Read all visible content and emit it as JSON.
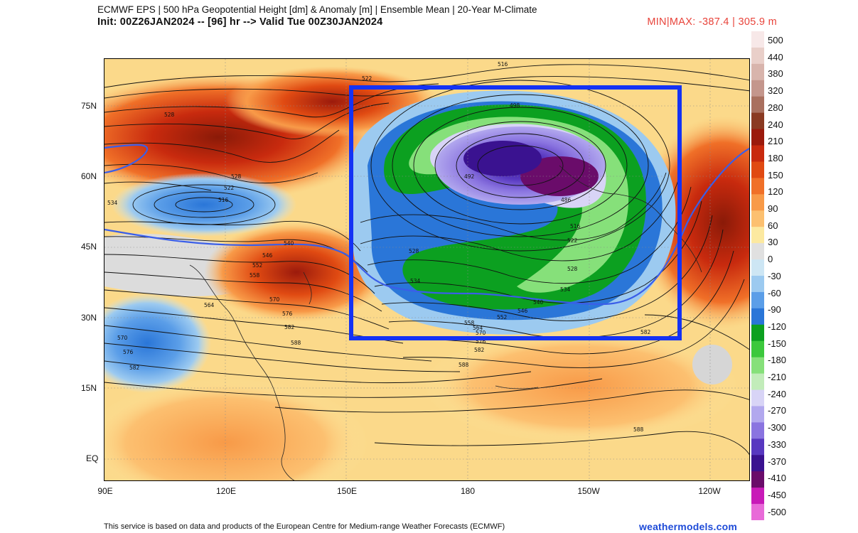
{
  "header": {
    "title_line1": "ECMWF EPS | 500 hPa Geopotential Height [dm] & Anomaly [m] | Ensemble Mean | 20-Year M-Climate",
    "title_line2": "Init: 00Z26JAN2024 -- [96] hr --> Valid Tue 00Z30JAN2024",
    "minmax": "MIN|MAX: -387.4 | 305.9 m"
  },
  "map": {
    "lat_labels": [
      "75N",
      "60N",
      "45N",
      "30N",
      "15N",
      "EQ"
    ],
    "lon_labels": [
      "90E",
      "120E",
      "150E",
      "180",
      "150W",
      "120W"
    ],
    "contour_labels": [
      "516",
      "522",
      "528",
      "492",
      "498",
      "486",
      "516",
      "522",
      "528",
      "534",
      "540",
      "546",
      "552",
      "558",
      "564",
      "570",
      "576",
      "582",
      "588",
      "588",
      "534",
      "528",
      "522",
      "516",
      "528",
      "534",
      "540",
      "546",
      "552",
      "558",
      "564",
      "570",
      "576",
      "582",
      "588",
      "570",
      "576",
      "582",
      "582"
    ],
    "highlight_box_color": "#1432f5"
  },
  "colorbar": {
    "labels": [
      "500",
      "440",
      "380",
      "320",
      "280",
      "240",
      "210",
      "180",
      "150",
      "120",
      "90",
      "60",
      "30",
      "0",
      "-30",
      "-60",
      "-90",
      "-120",
      "-150",
      "-180",
      "-210",
      "-240",
      "-270",
      "-300",
      "-330",
      "-370",
      "-410",
      "-450",
      "-500"
    ],
    "colors": [
      "#f7e8e8",
      "#e9cfc9",
      "#d8b4ac",
      "#c4968c",
      "#a9705f",
      "#8a3a22",
      "#9b1a0c",
      "#c82a0e",
      "#e04a12",
      "#f07028",
      "#f89a48",
      "#fcc070",
      "#fce9a0",
      "#e0e0e0",
      "#cde6f4",
      "#9ccaf0",
      "#5b9ee8",
      "#2a76d8",
      "#0ca020",
      "#3cc83c",
      "#86e07a",
      "#c2ecba",
      "#d8d4f6",
      "#b2a8ee",
      "#8a74e0",
      "#5838c0",
      "#3a1290",
      "#6a0c6a",
      "#c81ab8",
      "#e86ad8"
    ]
  },
  "footer": {
    "credit": "This service is based on data and products of the European Centre for Medium-range Weather Forecasts (ECMWF)",
    "site": "weathermodels.com"
  }
}
